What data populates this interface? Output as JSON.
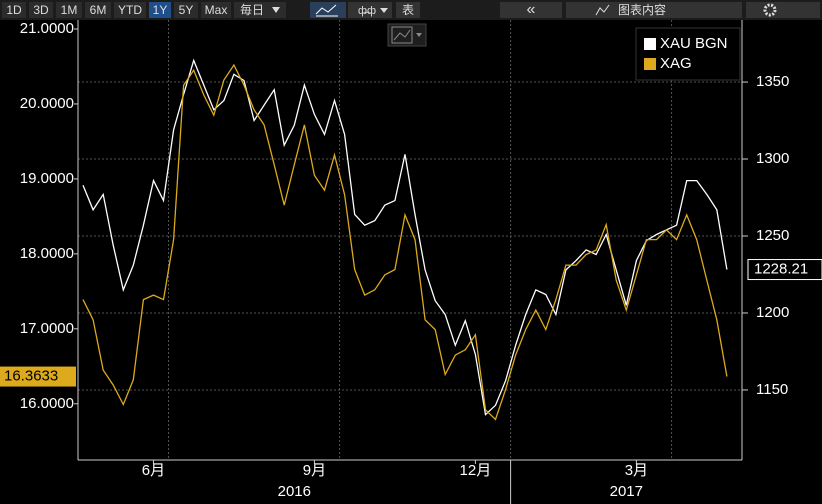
{
  "toolbar": {
    "ranges": [
      "1D",
      "3D",
      "1M",
      "6M",
      "YTD",
      "1Y",
      "5Y",
      "Max"
    ],
    "active_range": "1Y",
    "frequency": "毎日",
    "table_button": "表",
    "collapse": "«",
    "chart_content": "图表内容"
  },
  "chart_data": {
    "type": "line",
    "categories": [
      null,
      null,
      null,
      null,
      null,
      null,
      null,
      "6月",
      null,
      null,
      null,
      null,
      null,
      null,
      null,
      null,
      null,
      null,
      null,
      null,
      null,
      null,
      null,
      "9月",
      null,
      null,
      null,
      null,
      null,
      null,
      null,
      null,
      null,
      null,
      null,
      null,
      null,
      null,
      null,
      "12月",
      null,
      null,
      null,
      null,
      null,
      null,
      null,
      null,
      null,
      null,
      null,
      null,
      null,
      null,
      null,
      "3月",
      null,
      null,
      null,
      null,
      null,
      null,
      null,
      null,
      null,
      null
    ],
    "x_groups": [
      {
        "label": "2016",
        "start": 0
      },
      {
        "label": "2017",
        "start": 43
      }
    ],
    "series": [
      {
        "name": "XAU BGN",
        "color": "#ffffff",
        "axis": "y2",
        "values": [
          1283,
          1267,
          1277,
          1244,
          1215,
          1231,
          1257,
          1286,
          1273,
          1319,
          1342,
          1364,
          1348,
          1332,
          1338,
          1355,
          1351,
          1325,
          1335,
          1345,
          1309,
          1322,
          1348,
          1329,
          1316,
          1338,
          1316,
          1264,
          1257,
          1260,
          1270,
          1273,
          1303,
          1264,
          1228,
          1208,
          1199,
          1179,
          1195,
          1173,
          1134,
          1140,
          1156,
          1179,
          1199,
          1215,
          1212,
          1199,
          1228,
          1234,
          1241,
          1238,
          1251,
          1228,
          1205,
          1234,
          1247,
          1251,
          1254,
          1257,
          1286,
          1286,
          1277,
          1267,
          1228.21,
          null
        ],
        "value_labels": [
          null,
          null,
          null,
          null,
          null,
          null,
          null,
          null,
          null,
          null,
          null,
          null,
          null,
          null,
          null,
          null,
          null,
          null,
          null,
          null,
          null,
          null,
          null,
          null,
          null,
          null,
          null,
          null,
          null,
          null,
          null,
          null,
          null,
          null,
          null,
          null,
          null,
          null,
          null,
          null,
          null,
          null,
          null,
          null,
          null,
          null,
          null,
          null,
          null,
          null,
          null,
          null,
          null,
          null,
          null,
          null,
          null,
          null,
          null,
          null,
          null,
          null,
          null,
          null,
          "1228.21",
          null
        ]
      },
      {
        "name": "XAG",
        "color": "#dcaa1c",
        "values": [
          17.39,
          17.12,
          16.45,
          16.25,
          15.99,
          16.32,
          17.39,
          17.45,
          17.39,
          18.19,
          20.25,
          20.45,
          20.12,
          19.85,
          20.32,
          20.52,
          20.25,
          19.92,
          19.72,
          19.19,
          18.65,
          19.19,
          19.72,
          19.05,
          18.85,
          19.32,
          18.79,
          17.79,
          17.45,
          17.52,
          17.72,
          17.79,
          18.52,
          18.19,
          17.12,
          16.99,
          16.39,
          16.65,
          16.72,
          16.92,
          15.92,
          15.79,
          16.19,
          16.65,
          16.99,
          17.25,
          16.99,
          17.39,
          17.85,
          17.85,
          17.99,
          18.05,
          18.39,
          17.65,
          17.25,
          17.72,
          18.19,
          18.19,
          18.32,
          18.19,
          18.52,
          18.19,
          17.65,
          17.12,
          16.3633,
          null
        ],
        "value_labels": [
          null,
          null,
          null,
          null,
          null,
          null,
          null,
          null,
          null,
          null,
          null,
          null,
          null,
          null,
          null,
          null,
          null,
          null,
          null,
          null,
          null,
          null,
          null,
          null,
          null,
          null,
          null,
          null,
          null,
          null,
          null,
          null,
          null,
          null,
          null,
          null,
          null,
          null,
          null,
          null,
          null,
          null,
          null,
          null,
          null,
          null,
          null,
          null,
          null,
          null,
          null,
          null,
          null,
          null,
          null,
          null,
          null,
          null,
          null,
          null,
          null,
          null,
          null,
          null,
          "16.3633",
          null
        ]
      }
    ],
    "ylim": [
      15.25,
      21.12
    ],
    "yticks": [
      {
        "value": 16,
        "label": "16.0000"
      },
      {
        "value": 17,
        "label": "17.0000"
      },
      {
        "value": 18,
        "label": "18.0000"
      },
      {
        "value": 19,
        "label": "19.0000"
      },
      {
        "value": 20,
        "label": "20.0000"
      },
      {
        "value": 21,
        "label": "21.0000"
      }
    ],
    "y2lim": [
      1104.5,
      1390.3
    ],
    "y2ticks": [
      1150,
      1200,
      1250,
      1300,
      1350
    ],
    "grid": true,
    "legend": "top-right"
  }
}
